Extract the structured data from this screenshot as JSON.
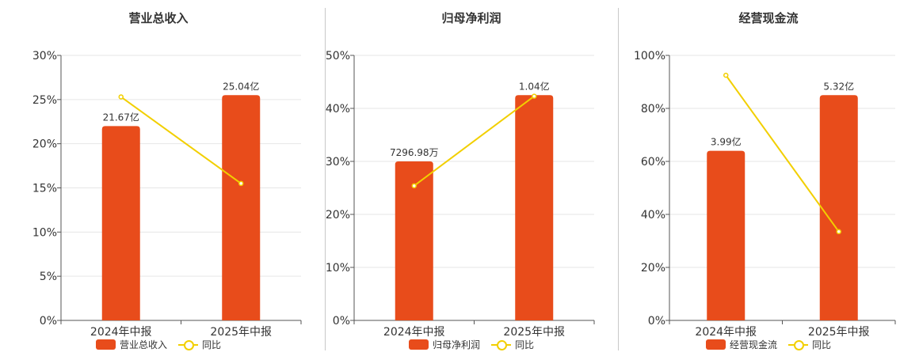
{
  "colors": {
    "bar": "#e84c1b",
    "line": "#f2cf00",
    "axis": "#555555",
    "grid": "#e6e6e6"
  },
  "chart_data": [
    {
      "type": "bar",
      "title": "营业总收入",
      "categories": [
        "2024年中报",
        "2025年中报"
      ],
      "y_ticks": [
        "0%",
        "5%",
        "10%",
        "15%",
        "20%",
        "25%",
        "30%"
      ],
      "ylim": [
        0,
        30
      ],
      "series": [
        {
          "name": "营业总收入",
          "type": "bar",
          "values": [
            22.0,
            25.5
          ],
          "labels": [
            "21.67亿",
            "25.04亿"
          ]
        },
        {
          "name": "同比",
          "type": "line",
          "values": [
            25.3,
            15.5
          ]
        }
      ],
      "legend": "bottom",
      "grid": true
    },
    {
      "type": "bar",
      "title": "归母净利润",
      "categories": [
        "2024年中报",
        "2025年中报"
      ],
      "y_ticks": [
        "0%",
        "10%",
        "20%",
        "30%",
        "40%",
        "50%"
      ],
      "ylim": [
        0,
        50
      ],
      "series": [
        {
          "name": "归母净利润",
          "type": "bar",
          "values": [
            30.0,
            42.5
          ],
          "labels": [
            "7296.98万",
            "1.04亿"
          ]
        },
        {
          "name": "同比",
          "type": "line",
          "values": [
            25.4,
            42.3
          ]
        }
      ],
      "legend": "bottom",
      "grid": true
    },
    {
      "type": "bar",
      "title": "经营现金流",
      "categories": [
        "2024年中报",
        "2025年中报"
      ],
      "y_ticks": [
        "0%",
        "20%",
        "40%",
        "60%",
        "80%",
        "100%"
      ],
      "ylim": [
        0,
        100
      ],
      "series": [
        {
          "name": "经营现金流",
          "type": "bar",
          "values": [
            64.0,
            85.0
          ],
          "labels": [
            "3.99亿",
            "5.32亿"
          ]
        },
        {
          "name": "同比",
          "type": "line",
          "values": [
            92.5,
            33.5
          ]
        }
      ],
      "legend": "bottom",
      "grid": true
    }
  ]
}
